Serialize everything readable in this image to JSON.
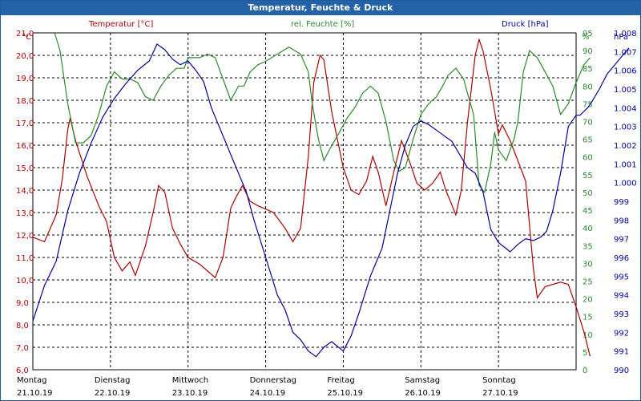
{
  "title": "Temperatur, Feuchte & Druck",
  "chart_data": {
    "type": "line",
    "axes": {
      "temperature": {
        "label": "Temperatur [°C]",
        "unit": "°C",
        "min": 6.0,
        "max": 21.0,
        "step": 1.0,
        "color": "#b00000",
        "ticks": [
          "21,0",
          "20,0",
          "19,0",
          "18,0",
          "17,0",
          "16,0",
          "15,0",
          "14,0",
          "13,0",
          "12,0",
          "11,0",
          "10,0",
          "9,0",
          "8,0",
          "7,0",
          "6,0"
        ]
      },
      "humidity": {
        "label": "rel. Feuchte [%]",
        "unit": "%",
        "min": 0,
        "max": 95,
        "step": 5,
        "color": "#2a8a2a",
        "ticks": [
          "95",
          "90",
          "85",
          "80",
          "75",
          "70",
          "65",
          "60",
          "55",
          "50",
          "45",
          "40",
          "35",
          "30",
          "25",
          "20",
          "15",
          "10",
          "5",
          "0"
        ]
      },
      "pressure": {
        "label": "Druck [hPa]",
        "unit": "hPa",
        "min": 990,
        "max": 1008,
        "step": 1,
        "color": "#0000a0",
        "ticks": [
          "1.008",
          "1.007",
          "1.006",
          "1.005",
          "1.004",
          "1.003",
          "1.002",
          "1.001",
          "1.000",
          "999",
          "998",
          "997",
          "996",
          "995",
          "994",
          "993",
          "992",
          "991",
          "990"
        ]
      }
    },
    "x_categories": [
      {
        "day": "Montag",
        "date": "21.10.19"
      },
      {
        "day": "Dienstag",
        "date": "22.10.19"
      },
      {
        "day": "Mittwoch",
        "date": "23.10.19"
      },
      {
        "day": "Donnerstag",
        "date": "24.10.19"
      },
      {
        "day": "Freitag",
        "date": "25.10.19"
      },
      {
        "day": "Samstag",
        "date": "26.10.19"
      },
      {
        "day": "Sonntag",
        "date": "27.10.19"
      }
    ],
    "x_range_days": [
      0,
      7
    ],
    "series": [
      {
        "name": "Temperatur [°C]",
        "axis": "temperature",
        "color": "#b00000",
        "points": [
          [
            0,
            11.9
          ],
          [
            0.15,
            11.7
          ],
          [
            0.3,
            12.9
          ],
          [
            0.38,
            14.5
          ],
          [
            0.45,
            16.7
          ],
          [
            0.48,
            17.2
          ],
          [
            0.55,
            16.2
          ],
          [
            0.7,
            14.6
          ],
          [
            0.85,
            13.3
          ],
          [
            0.95,
            12.6
          ],
          [
            1.05,
            11.0
          ],
          [
            1.15,
            10.4
          ],
          [
            1.25,
            10.8
          ],
          [
            1.32,
            10.2
          ],
          [
            1.45,
            11.5
          ],
          [
            1.55,
            13.0
          ],
          [
            1.62,
            14.2
          ],
          [
            1.7,
            13.9
          ],
          [
            1.8,
            12.3
          ],
          [
            1.9,
            11.6
          ],
          [
            2.0,
            11.0
          ],
          [
            2.15,
            10.7
          ],
          [
            2.35,
            10.1
          ],
          [
            2.45,
            11.0
          ],
          [
            2.55,
            13.2
          ],
          [
            2.62,
            13.7
          ],
          [
            2.7,
            14.2
          ],
          [
            2.8,
            13.5
          ],
          [
            2.9,
            13.3
          ],
          [
            3.1,
            13.0
          ],
          [
            3.25,
            12.3
          ],
          [
            3.35,
            11.7
          ],
          [
            3.45,
            12.3
          ],
          [
            3.55,
            15.5
          ],
          [
            3.62,
            18.8
          ],
          [
            3.7,
            20.0
          ],
          [
            3.75,
            19.8
          ],
          [
            3.85,
            17.5
          ],
          [
            4.0,
            15.0
          ],
          [
            4.1,
            14.0
          ],
          [
            4.2,
            13.8
          ],
          [
            4.3,
            14.4
          ],
          [
            4.38,
            15.5
          ],
          [
            4.45,
            14.8
          ],
          [
            4.55,
            13.3
          ],
          [
            4.65,
            14.8
          ],
          [
            4.75,
            16.2
          ],
          [
            4.85,
            15.3
          ],
          [
            4.95,
            14.3
          ],
          [
            5.05,
            14.0
          ],
          [
            5.15,
            14.3
          ],
          [
            5.25,
            14.8
          ],
          [
            5.32,
            14.0
          ],
          [
            5.38,
            13.5
          ],
          [
            5.45,
            12.9
          ],
          [
            5.52,
            14.0
          ],
          [
            5.6,
            17.0
          ],
          [
            5.7,
            20.0
          ],
          [
            5.75,
            20.7
          ],
          [
            5.8,
            20.2
          ],
          [
            5.9,
            18.5
          ],
          [
            6.0,
            16.5
          ],
          [
            6.05,
            16.9
          ],
          [
            6.15,
            16.2
          ],
          [
            6.25,
            15.3
          ],
          [
            6.35,
            14.4
          ],
          [
            6.45,
            10.5
          ],
          [
            6.5,
            9.2
          ],
          [
            6.6,
            9.7
          ],
          [
            6.8,
            9.9
          ],
          [
            6.9,
            9.8
          ],
          [
            7.0,
            8.8
          ],
          [
            7.1,
            7.7
          ],
          [
            7.18,
            6.6
          ]
        ]
      },
      {
        "name": "rel. Feuchte [%]",
        "axis": "humidity",
        "color": "#2a8a2a",
        "points": [
          [
            0.28,
            95
          ],
          [
            0.35,
            90
          ],
          [
            0.45,
            75
          ],
          [
            0.55,
            64
          ],
          [
            0.65,
            64
          ],
          [
            0.75,
            66
          ],
          [
            0.85,
            72
          ],
          [
            0.95,
            80
          ],
          [
            1.05,
            84
          ],
          [
            1.15,
            82
          ],
          [
            1.25,
            82
          ],
          [
            1.35,
            81
          ],
          [
            1.45,
            77
          ],
          [
            1.55,
            76
          ],
          [
            1.65,
            80
          ],
          [
            1.75,
            83
          ],
          [
            1.85,
            85
          ],
          [
            1.95,
            85
          ],
          [
            2.0,
            88
          ],
          [
            2.05,
            88
          ],
          [
            2.15,
            88
          ],
          [
            2.25,
            89
          ],
          [
            2.35,
            88
          ],
          [
            2.45,
            82
          ],
          [
            2.55,
            76
          ],
          [
            2.65,
            80
          ],
          [
            2.72,
            80
          ],
          [
            2.8,
            84
          ],
          [
            2.9,
            86
          ],
          [
            3.0,
            87
          ],
          [
            3.15,
            89
          ],
          [
            3.3,
            91
          ],
          [
            3.45,
            89
          ],
          [
            3.55,
            84
          ],
          [
            3.6,
            75
          ],
          [
            3.68,
            65
          ],
          [
            3.75,
            59
          ],
          [
            3.82,
            62
          ],
          [
            3.95,
            67
          ],
          [
            4.05,
            71
          ],
          [
            4.15,
            74
          ],
          [
            4.25,
            78
          ],
          [
            4.35,
            80
          ],
          [
            4.45,
            78
          ],
          [
            4.55,
            70
          ],
          [
            4.65,
            59
          ],
          [
            4.72,
            56
          ],
          [
            4.8,
            57
          ],
          [
            4.9,
            65
          ],
          [
            5.0,
            72
          ],
          [
            5.1,
            75
          ],
          [
            5.2,
            77
          ],
          [
            5.28,
            80
          ],
          [
            5.35,
            83
          ],
          [
            5.45,
            85
          ],
          [
            5.55,
            82
          ],
          [
            5.6,
            78
          ],
          [
            5.68,
            72
          ],
          [
            5.75,
            52
          ],
          [
            5.82,
            50
          ],
          [
            5.9,
            58
          ],
          [
            5.95,
            67
          ],
          [
            6.0,
            62
          ],
          [
            6.1,
            59
          ],
          [
            6.2,
            65
          ],
          [
            6.25,
            70
          ],
          [
            6.32,
            84
          ],
          [
            6.4,
            90
          ],
          [
            6.5,
            88
          ],
          [
            6.6,
            84
          ],
          [
            6.7,
            80
          ],
          [
            6.8,
            72
          ],
          [
            6.9,
            75
          ],
          [
            7.0,
            81
          ],
          [
            7.1,
            86
          ],
          [
            7.18,
            88
          ]
        ]
      },
      {
        "name": "Druck [hPa]",
        "axis": "pressure",
        "color": "#0000a0",
        "points": [
          [
            0,
            992.6
          ],
          [
            0.15,
            994.5
          ],
          [
            0.3,
            995.8
          ],
          [
            0.45,
            998.5
          ],
          [
            0.6,
            1000.5
          ],
          [
            0.75,
            1002.1
          ],
          [
            0.9,
            1003.5
          ],
          [
            1.05,
            1004.5
          ],
          [
            1.2,
            1005.3
          ],
          [
            1.35,
            1006.0
          ],
          [
            1.5,
            1006.5
          ],
          [
            1.6,
            1007.4
          ],
          [
            1.7,
            1007.1
          ],
          [
            1.8,
            1006.6
          ],
          [
            1.9,
            1006.3
          ],
          [
            2.0,
            1006.5
          ],
          [
            2.1,
            1006.0
          ],
          [
            2.2,
            1005.4
          ],
          [
            2.3,
            1004.0
          ],
          [
            2.45,
            1002.5
          ],
          [
            2.6,
            1001.0
          ],
          [
            2.75,
            999.5
          ],
          [
            2.85,
            998.0
          ],
          [
            3.0,
            996.0
          ],
          [
            3.15,
            994.0
          ],
          [
            3.25,
            993.2
          ],
          [
            3.35,
            992.0
          ],
          [
            3.45,
            991.6
          ],
          [
            3.55,
            991.0
          ],
          [
            3.65,
            990.7
          ],
          [
            3.75,
            991.2
          ],
          [
            3.85,
            991.5
          ],
          [
            4.0,
            991.0
          ],
          [
            4.1,
            991.8
          ],
          [
            4.2,
            993.0
          ],
          [
            4.35,
            995.0
          ],
          [
            4.5,
            996.5
          ],
          [
            4.6,
            998.5
          ],
          [
            4.7,
            1000.5
          ],
          [
            4.8,
            1002.0
          ],
          [
            4.9,
            1003.0
          ],
          [
            5.0,
            1003.3
          ],
          [
            5.1,
            1003.1
          ],
          [
            5.2,
            1002.8
          ],
          [
            5.3,
            1002.5
          ],
          [
            5.4,
            1002.2
          ],
          [
            5.5,
            1001.5
          ],
          [
            5.6,
            1000.8
          ],
          [
            5.7,
            1000.5
          ],
          [
            5.8,
            999.5
          ],
          [
            5.9,
            997.5
          ],
          [
            6.0,
            996.8
          ],
          [
            6.15,
            996.3
          ],
          [
            6.25,
            996.7
          ],
          [
            6.35,
            997.0
          ],
          [
            6.45,
            996.9
          ],
          [
            6.55,
            997.1
          ],
          [
            6.62,
            997.4
          ],
          [
            6.7,
            998.5
          ],
          [
            6.8,
            1000.5
          ],
          [
            6.9,
            1003.0
          ],
          [
            7.0,
            1003.6
          ],
          [
            7.05,
            1003.6
          ],
          [
            7.1,
            1003.8
          ],
          [
            7.15,
            1004.0
          ],
          [
            7.2,
            1004.3
          ],
          [
            7.3,
            1005.0
          ],
          [
            7.4,
            1005.8
          ],
          [
            7.5,
            1006.3
          ],
          [
            7.6,
            1006.8
          ],
          [
            7.68,
            1007.2
          ]
        ]
      }
    ]
  }
}
